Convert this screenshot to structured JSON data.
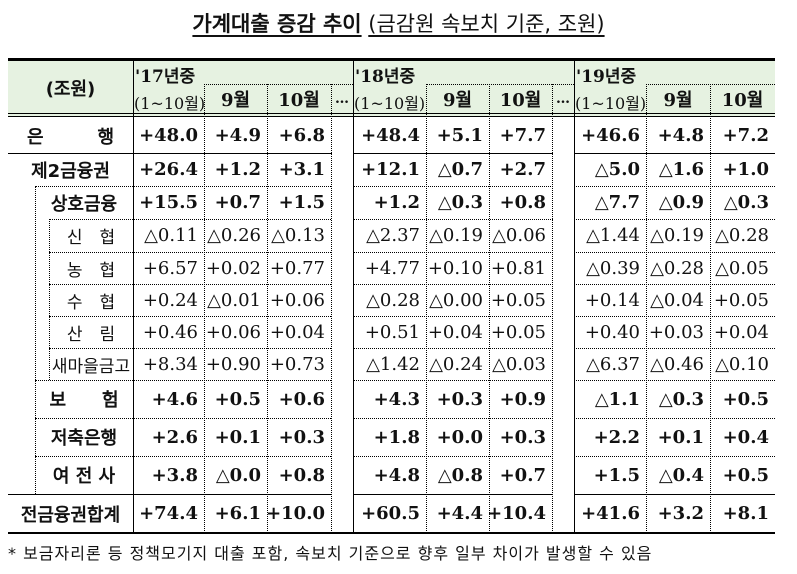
{
  "title": {
    "main": "가계대출 증감 추이",
    "sub": "(금감원 속보치 기준, 조원)"
  },
  "header": {
    "unit": "(조원)",
    "years": [
      {
        "label": "'17년중",
        "cols": [
          "(1~10월)",
          "9월",
          "10월"
        ]
      },
      {
        "label": "'18년중",
        "cols": [
          "(1~10월)",
          "9월",
          "10월"
        ]
      },
      {
        "label": "'19년중",
        "cols": [
          "(1~10월)",
          "9월",
          "10월"
        ]
      }
    ],
    "ellipsis": "…"
  },
  "rows": [
    {
      "label": "은　　　행",
      "bold": true,
      "values": [
        "+48.0",
        "+4.9",
        "+6.8",
        "+48.4",
        "+5.1",
        "+7.7",
        "+46.6",
        "+4.8",
        "+7.2"
      ]
    },
    {
      "label": "제2금융권",
      "bold": true,
      "values": [
        "+26.4",
        "+1.2",
        "+3.1",
        "+12.1",
        "△0.7",
        "+2.7",
        "△5.0",
        "△1.6",
        "+1.0"
      ]
    },
    {
      "label": "상호금융",
      "bold": true,
      "values": [
        "+15.5",
        "+0.7",
        "+1.5",
        "+1.2",
        "△0.3",
        "+0.8",
        "△7.7",
        "△0.9",
        "△0.3"
      ]
    },
    {
      "label": "신　협",
      "bold": false,
      "values": [
        "△0.11",
        "△0.26",
        "△0.13",
        "△2.37",
        "△0.19",
        "△0.06",
        "△1.44",
        "△0.19",
        "△0.28"
      ]
    },
    {
      "label": "농　협",
      "bold": false,
      "values": [
        "+6.57",
        "+0.02",
        "+0.77",
        "+4.77",
        "+0.10",
        "+0.81",
        "△0.39",
        "△0.28",
        "△0.05"
      ]
    },
    {
      "label": "수　협",
      "bold": false,
      "values": [
        "+0.24",
        "△0.01",
        "+0.06",
        "△0.28",
        "△0.00",
        "+0.05",
        "+0.14",
        "△0.04",
        "+0.05"
      ]
    },
    {
      "label": "산　림",
      "bold": false,
      "values": [
        "+0.46",
        "+0.06",
        "+0.04",
        "+0.51",
        "+0.04",
        "+0.05",
        "+0.40",
        "+0.03",
        "+0.04"
      ]
    },
    {
      "label": "새마을금고",
      "bold": false,
      "values": [
        "+8.34",
        "+0.90",
        "+0.73",
        "△1.42",
        "△0.24",
        "△0.03",
        "△6.37",
        "△0.46",
        "△0.10"
      ]
    },
    {
      "label": "보　　험",
      "bold": true,
      "values": [
        "+4.6",
        "+0.5",
        "+0.6",
        "+4.3",
        "+0.3",
        "+0.9",
        "△1.1",
        "△0.3",
        "+0.5"
      ]
    },
    {
      "label": "저축은행",
      "bold": true,
      "values": [
        "+2.6",
        "+0.1",
        "+0.3",
        "+1.8",
        "+0.0",
        "+0.3",
        "+2.2",
        "+0.1",
        "+0.4"
      ]
    },
    {
      "label": "여 전 사",
      "bold": true,
      "values": [
        "+3.8",
        "△0.0",
        "+0.8",
        "+4.8",
        "△0.8",
        "+0.7",
        "+1.5",
        "△0.4",
        "+0.5"
      ]
    },
    {
      "label": "전금융권합계",
      "bold": true,
      "values": [
        "+74.4",
        "+6.1",
        "+10.0",
        "+60.5",
        "+4.4",
        "+10.4",
        "+41.6",
        "+3.2",
        "+8.1"
      ]
    }
  ],
  "footnote": "* 보금자리론 등 정책모기지 대출 포함, 속보치 기준으로 향후 일부 차이가 발생할 수 있음"
}
